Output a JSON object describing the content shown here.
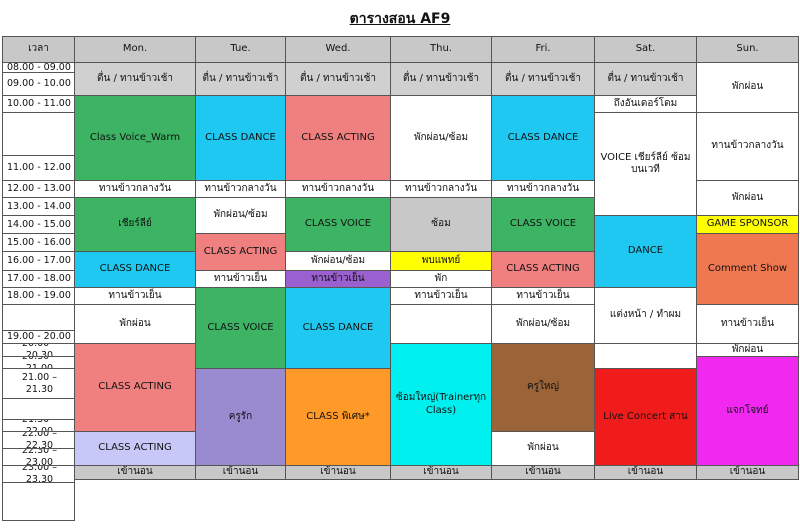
{
  "title": "ตารางสอน AF9",
  "header": {
    "time_label": "เวลา",
    "days": [
      "Mon.",
      "Tue.",
      "Wed.",
      "Thu.",
      "Fri.",
      "Sat.",
      "Sun."
    ]
  },
  "times": [
    "08.00 - 09.00",
    "09.00 - 10.00",
    "10.00 - 11.00",
    "",
    "11.00 - 12.00",
    "12.00 - 13.00",
    "13.00 - 14.00",
    "14.00 - 15.00",
    "15.00 - 16.00",
    "16.00 - 17.00",
    "17.00 - 18.00",
    "18.00 - 19.00",
    "",
    "19.00 - 20.00",
    "20.00 – 20.30",
    "20.30 – 21.00",
    "21.00 – 21.30",
    "",
    "21.30 – 22.00",
    "22.00 – 22.30",
    "22.30 – 23.00",
    "23.00 – 23.30",
    "",
    "23.30 - 08.00"
  ],
  "blocks": [
    {
      "day": 0,
      "r0": 0,
      "r1": 2,
      "text": "ตื่น / ทานข้าวเช้า",
      "color": "#d0d0d0"
    },
    {
      "day": 0,
      "r0": 2,
      "r1": 5,
      "text": "Class Voice_Warm",
      "color": "#3cb464"
    },
    {
      "day": 0,
      "r0": 5,
      "r1": 6,
      "text": "ทานข้าวกลางวัน",
      "color": "#ffffff"
    },
    {
      "day": 0,
      "r0": 6,
      "r1": 9,
      "text": "เชียร์ลีย์",
      "color": "#3cb464"
    },
    {
      "day": 0,
      "r0": 9,
      "r1": 11,
      "text": "CLASS DANCE",
      "color": "#1ec8f0"
    },
    {
      "day": 0,
      "r0": 11,
      "r1": 12,
      "text": "ทานข้าวเย็น",
      "color": "#ffffff"
    },
    {
      "day": 0,
      "r0": 12,
      "r1": 14,
      "text": "พักผ่อน",
      "color": "#ffffff"
    },
    {
      "day": 0,
      "r0": 14,
      "r1": 19,
      "text": "CLASS ACTING",
      "color": "#f08080"
    },
    {
      "day": 0,
      "r0": 19,
      "r1": 21,
      "text": "CLASS ACTING",
      "color": "#c8c8f8"
    },
    {
      "day": 0,
      "r0": 21,
      "r1": 24,
      "text": "เข้านอน",
      "color": "#c8c8c8"
    },
    {
      "day": 1,
      "r0": 0,
      "r1": 2,
      "text": "ตื่น / ทานข้าวเช้า",
      "color": "#d0d0d0"
    },
    {
      "day": 1,
      "r0": 2,
      "r1": 5,
      "text": "CLASS DANCE",
      "color": "#1ec8f0"
    },
    {
      "day": 1,
      "r0": 5,
      "r1": 6,
      "text": "ทานข้าวกลางวัน",
      "color": "#ffffff"
    },
    {
      "day": 1,
      "r0": 6,
      "r1": 8,
      "text": "พักผ่อน/ซ้อม",
      "color": "#ffffff"
    },
    {
      "day": 1,
      "r0": 8,
      "r1": 10,
      "text": "CLASS ACTING",
      "color": "#f08080"
    },
    {
      "day": 1,
      "r0": 10,
      "r1": 11,
      "text": "ทานข้าวเย็น",
      "color": "#ffffff"
    },
    {
      "day": 1,
      "r0": 11,
      "r1": 16,
      "text": "CLASS VOICE",
      "color": "#3cb464"
    },
    {
      "day": 1,
      "r0": 16,
      "r1": 21,
      "text": "ครูรัก",
      "color": "#9a8ad0"
    },
    {
      "day": 1,
      "r0": 21,
      "r1": 24,
      "text": "เข้านอน",
      "color": "#c8c8c8"
    },
    {
      "day": 2,
      "r0": 0,
      "r1": 2,
      "text": "ตื่น / ทานข้าวเช้า",
      "color": "#d0d0d0"
    },
    {
      "day": 2,
      "r0": 2,
      "r1": 5,
      "text": "CLASS ACTING",
      "color": "#f08080"
    },
    {
      "day": 2,
      "r0": 5,
      "r1": 6,
      "text": "ทานข้าวกลางวัน",
      "color": "#ffffff"
    },
    {
      "day": 2,
      "r0": 6,
      "r1": 9,
      "text": "CLASS VOICE",
      "color": "#3cb464"
    },
    {
      "day": 2,
      "r0": 9,
      "r1": 10,
      "text": "พักผ่อน/ซ้อม",
      "color": "#ffffff"
    },
    {
      "day": 2,
      "r0": 10,
      "r1": 11,
      "text": "ทานข้าวเย็น",
      "color": "#9a60d0"
    },
    {
      "day": 2,
      "r0": 11,
      "r1": 16,
      "text": "CLASS DANCE",
      "color": "#1ec8f0"
    },
    {
      "day": 2,
      "r0": 16,
      "r1": 21,
      "text": "CLASS พิเศษ*",
      "color": "#ff9a28"
    },
    {
      "day": 2,
      "r0": 21,
      "r1": 24,
      "text": "เข้านอน",
      "color": "#c8c8c8"
    },
    {
      "day": 3,
      "r0": 0,
      "r1": 2,
      "text": "ตื่น / ทานข้าวเช้า",
      "color": "#d0d0d0"
    },
    {
      "day": 3,
      "r0": 2,
      "r1": 5,
      "text": "พักผ่อน/ซ้อม",
      "color": "#ffffff"
    },
    {
      "day": 3,
      "r0": 5,
      "r1": 6,
      "text": "ทานข้าวกลางวัน",
      "color": "#ffffff"
    },
    {
      "day": 3,
      "r0": 6,
      "r1": 9,
      "text": "ซ้อม",
      "color": "#c8c8c8"
    },
    {
      "day": 3,
      "r0": 9,
      "r1": 10,
      "text": "พบแพทย์",
      "color": "#ffff00"
    },
    {
      "day": 3,
      "r0": 10,
      "r1": 11,
      "text": "พัก",
      "color": "#ffffff"
    },
    {
      "day": 3,
      "r0": 11,
      "r1": 12,
      "text": "ทานข้าวเย็น",
      "color": "#ffffff"
    },
    {
      "day": 3,
      "r0": 12,
      "r1": 14,
      "text": "",
      "color": "#ffffff"
    },
    {
      "day": 3,
      "r0": 14,
      "r1": 21,
      "text": "ซ้อมใหญ่(Trainerทุก Class)",
      "color": "#00f0f0"
    },
    {
      "day": 3,
      "r0": 21,
      "r1": 24,
      "text": "เข้านอน",
      "color": "#c8c8c8"
    },
    {
      "day": 4,
      "r0": 0,
      "r1": 2,
      "text": "ตื่น / ทานข้าวเช้า",
      "color": "#d0d0d0"
    },
    {
      "day": 4,
      "r0": 2,
      "r1": 5,
      "text": "CLASS DANCE",
      "color": "#1ec8f0"
    },
    {
      "day": 4,
      "r0": 5,
      "r1": 6,
      "text": "ทานข้าวกลางวัน",
      "color": "#ffffff"
    },
    {
      "day": 4,
      "r0": 6,
      "r1": 9,
      "text": "CLASS VOICE",
      "color": "#3cb464"
    },
    {
      "day": 4,
      "r0": 9,
      "r1": 11,
      "text": "CLASS ACTING",
      "color": "#f08080"
    },
    {
      "day": 4,
      "r0": 11,
      "r1": 12,
      "text": "ทานข้าวเย็น",
      "color": "#ffffff"
    },
    {
      "day": 4,
      "r0": 12,
      "r1": 14,
      "text": "พักผ่อน/ซ้อม",
      "color": "#ffffff"
    },
    {
      "day": 4,
      "r0": 14,
      "r1": 19,
      "text": "ครูใหญ่",
      "color": "#9a6438"
    },
    {
      "day": 4,
      "r0": 19,
      "r1": 21,
      "text": "พักผ่อน",
      "color": "#ffffff"
    },
    {
      "day": 4,
      "r0": 21,
      "r1": 24,
      "text": "เข้านอน",
      "color": "#c8c8c8"
    },
    {
      "day": 5,
      "r0": 0,
      "r1": 2,
      "text": "ตื่น / ทานข้าวเช้า",
      "color": "#d0d0d0"
    },
    {
      "day": 5,
      "r0": 2,
      "r1": 3,
      "text": "ถึงอันเดอร์โดม",
      "color": "#ffffff"
    },
    {
      "day": 5,
      "r0": 3,
      "r1": 7,
      "text": "VOICE เชียร์ลีย์ ซ้อมบนเวที",
      "color": "#ffffff"
    },
    {
      "day": 5,
      "r0": 7,
      "r1": 11,
      "text": "DANCE",
      "color": "#1ec8f0"
    },
    {
      "day": 5,
      "r0": 11,
      "r1": 14,
      "text": "แต่งหน้า / ทำผม",
      "color": "#ffffff"
    },
    {
      "day": 5,
      "r0": 14,
      "r1": 16,
      "text": "",
      "color": "#ffffff"
    },
    {
      "day": 5,
      "r0": 16,
      "r1": 21,
      "text": "Live Concert สาน",
      "color": "#f01c1c"
    },
    {
      "day": 5,
      "r0": 21,
      "r1": 24,
      "text": "เข้านอน",
      "color": "#c8c8c8"
    },
    {
      "day": 6,
      "r0": 0,
      "r1": 3,
      "text": "พักผ่อน",
      "color": "#ffffff"
    },
    {
      "day": 6,
      "r0": 3,
      "r1": 5,
      "text": "ทานข้าวกลางวัน",
      "color": "#ffffff"
    },
    {
      "day": 6,
      "r0": 5,
      "r1": 7,
      "text": "พักผ่อน",
      "color": "#ffffff"
    },
    {
      "day": 6,
      "r0": 7,
      "r1": 8,
      "text": "GAME SPONSOR",
      "color": "#ffff00"
    },
    {
      "day": 6,
      "r0": 8,
      "r1": 12,
      "text": "Comment Show",
      "color": "#f07850"
    },
    {
      "day": 6,
      "r0": 12,
      "r1": 14,
      "text": "ทานข้าวเย็น",
      "color": "#ffffff"
    },
    {
      "day": 6,
      "r0": 14,
      "r1": 15,
      "text": "พักผ่อน",
      "color": "#ffffff"
    },
    {
      "day": 6,
      "r0": 15,
      "r1": 21,
      "text": "แจกโจทย์",
      "color": "#f028f0"
    },
    {
      "day": 6,
      "r0": 21,
      "r1": 24,
      "text": "เข้านอน",
      "color": "#c8c8c8"
    }
  ]
}
